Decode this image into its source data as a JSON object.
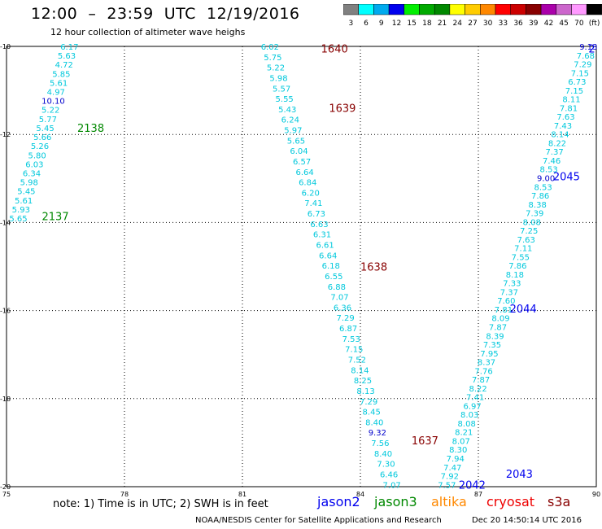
{
  "header": {
    "title": "12:00  –  23:59  UTC  12/19/2016",
    "subtitle": "12 hour collection of altimeter wave heighs"
  },
  "colorbar": {
    "labels": [
      "3",
      "6",
      "9",
      "12",
      "15",
      "18",
      "21",
      "24",
      "27",
      "30",
      "33",
      "36",
      "39",
      "42",
      "45",
      "70",
      "(ft)"
    ],
    "colors": [
      "#808080",
      "#00ffff",
      "#00aaee",
      "#0000ee",
      "#00ee00",
      "#00aa00",
      "#008800",
      "#ffff00",
      "#ffcc00",
      "#ff8800",
      "#ff0000",
      "#cc0000",
      "#880000",
      "#aa00aa",
      "#cc66cc",
      "#ff99ff",
      "#000000"
    ]
  },
  "chart_data": {
    "type": "map",
    "xlim": [
      75,
      90
    ],
    "ylim": [
      -20,
      -10
    ],
    "x_ticks": [
      "75",
      "78",
      "81",
      "84",
      "87",
      "90"
    ],
    "y_ticks": [
      "-10",
      "-12",
      "-14",
      "-16",
      "-18",
      "-20"
    ],
    "grid": true,
    "tracks": [
      {
        "lon_start": 76.6,
        "lon_end": 75.3,
        "lat_start": -10.0,
        "lat_end": -13.9,
        "values": [
          "6.17",
          "5.63",
          "4.72",
          "5.85",
          "5.61",
          "4.97",
          "10.10",
          "5.22",
          "5.77",
          "5.45",
          "5.66",
          "5.26",
          "5.80",
          "6.03",
          "6.34",
          "5.98",
          "5.45",
          "5.61",
          "5.93",
          "5.65"
        ],
        "colors": [
          "c",
          "c",
          "c",
          "c",
          "c",
          "c",
          "b",
          "c",
          "c",
          "c",
          "c",
          "c",
          "c",
          "c",
          "c",
          "c",
          "c",
          "c",
          "c",
          "c"
        ]
      },
      {
        "lon_start": 81.7,
        "lon_end": 84.8,
        "lat_start": -10.0,
        "lat_end": -19.95,
        "values": [
          "6.02",
          "5.75",
          "5.22",
          "5.98",
          "5.57",
          "5.55",
          "5.43",
          "6.24",
          "5.97",
          "5.65",
          "6.04",
          "6.57",
          "6.64",
          "6.84",
          "6.20",
          "7.41",
          "6.73",
          "6.63",
          "6.31",
          "6.61",
          "6.64",
          "6.18",
          "6.55",
          "6.88",
          "7.07",
          "6.36",
          "7.29",
          "6.87",
          "7.53",
          "7.15",
          "7.52",
          "8.14",
          "8.25",
          "8.13",
          "7.29",
          "8.45",
          "8.40",
          "9.32",
          "7.56",
          "8.40",
          "7.30",
          "6.46",
          "7.07"
        ],
        "colors": [
          "c",
          "c",
          "c",
          "c",
          "c",
          "c",
          "c",
          "c",
          "c",
          "c",
          "c",
          "c",
          "c",
          "c",
          "c",
          "c",
          "c",
          "c",
          "c",
          "c",
          "c",
          "c",
          "c",
          "c",
          "c",
          "c",
          "c",
          "c",
          "c",
          "c",
          "c",
          "c",
          "c",
          "c",
          "c",
          "c",
          "c",
          "b",
          "c",
          "c",
          "c",
          "c",
          "c"
        ]
      },
      {
        "lon_start": 89.8,
        "lon_end": 86.2,
        "lat_start": -10.0,
        "lat_end": -19.95,
        "values": [
          "9.13",
          "7.68",
          "7.29",
          "7.15",
          "6.73",
          "7.15",
          "8.11",
          "7.81",
          "7.63",
          "7.43",
          "8.14",
          "8.22",
          "7.37",
          "7.46",
          "8.53",
          "9.00",
          "8.53",
          "7.86",
          "8.38",
          "7.39",
          "8.08",
          "7.25",
          "7.63",
          "7.11",
          "7.55",
          "7.86",
          "8.18",
          "7.33",
          "7.37",
          "7.60",
          "7.81",
          "8.09",
          "7.87",
          "8.39",
          "7.35",
          "7.95",
          "8.37",
          "7.76",
          "7.87",
          "8.22",
          "7.41",
          "6.97",
          "8.03",
          "8.08",
          "8.21",
          "8.07",
          "8.30",
          "7.94",
          "7.47",
          "7.92",
          "7.57"
        ],
        "colors": [
          "b",
          "c",
          "c",
          "c",
          "c",
          "c",
          "c",
          "c",
          "c",
          "c",
          "c",
          "c",
          "c",
          "c",
          "c",
          "b",
          "c",
          "c",
          "c",
          "c",
          "c",
          "c",
          "c",
          "c",
          "c",
          "c",
          "c",
          "c",
          "c",
          "c",
          "c",
          "c",
          "c",
          "c",
          "c",
          "c",
          "c",
          "c",
          "c",
          "c",
          "c",
          "c",
          "c",
          "c",
          "c",
          "c",
          "c",
          "c",
          "c",
          "c",
          "c"
        ]
      }
    ],
    "time_labels": [
      {
        "text": "1640",
        "lon": 83.0,
        "lat": -10.05,
        "color": "#880000"
      },
      {
        "text": "1639",
        "lon": 83.2,
        "lat": -11.4,
        "color": "#880000"
      },
      {
        "text": "1638",
        "lon": 84.0,
        "lat": -15.0,
        "color": "#880000"
      },
      {
        "text": "1637",
        "lon": 85.3,
        "lat": -18.95,
        "color": "#880000"
      },
      {
        "text": "2138",
        "lon": 76.8,
        "lat": -11.85,
        "color": "#008800"
      },
      {
        "text": "2137",
        "lon": 75.9,
        "lat": -13.85,
        "color": "#008800"
      },
      {
        "text": "2045",
        "lon": 88.9,
        "lat": -12.95,
        "color": "#0000ee"
      },
      {
        "text": "2044",
        "lon": 87.8,
        "lat": -15.95,
        "color": "#0000ee"
      },
      {
        "text": "2043",
        "lon": 87.7,
        "lat": -19.7,
        "color": "#0000ee"
      },
      {
        "text": "2042",
        "lon": 86.5,
        "lat": -19.95,
        "color": "#0000ee"
      },
      {
        "text": "2",
        "lon": 89.8,
        "lat": -10.05,
        "color": "#0000ee"
      }
    ]
  },
  "note": "note:  1) Time is in UTC;  2) SWH is in feet",
  "legend": [
    {
      "name": "jason2",
      "color": "#0000ee"
    },
    {
      "name": "jason3",
      "color": "#008800"
    },
    {
      "name": "altika",
      "color": "#ff8800"
    },
    {
      "name": "cryosat",
      "color": "#ee0000"
    },
    {
      "name": "s3a",
      "color": "#880000"
    }
  ],
  "credit": "NOAA/NESDIS Center for Satellite Applications and Research",
  "timestamp": "Dec 20 14:50:14 UTC 2016"
}
